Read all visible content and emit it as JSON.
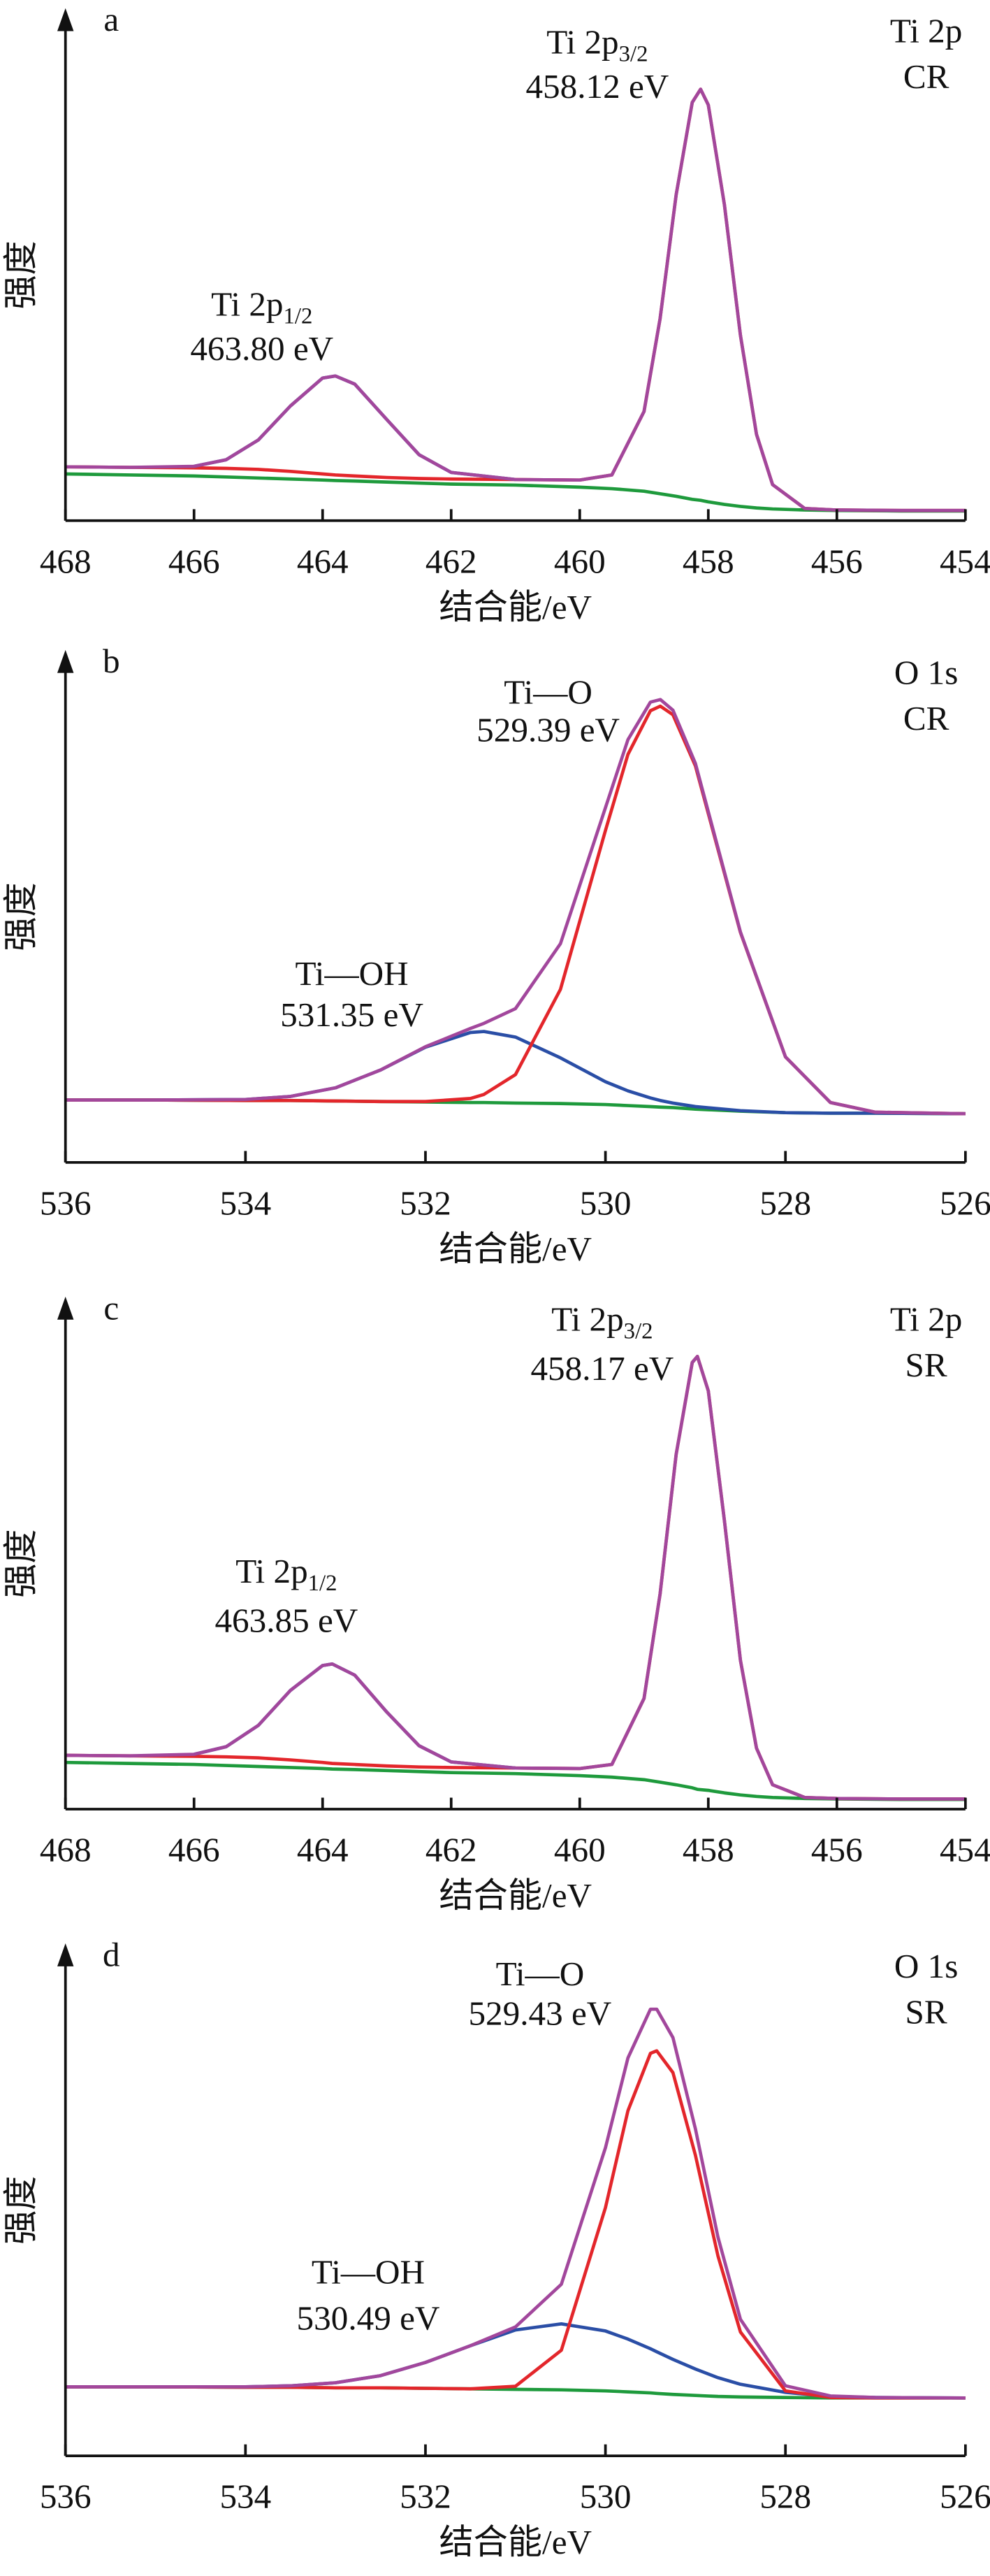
{
  "chart_data": [
    {
      "type": "line",
      "panel_label": "a",
      "corner_label": [
        "Ti 2p",
        "CR"
      ],
      "xlabel": "结合能/eV",
      "ylabel": "强度",
      "xlim": [
        468,
        454
      ],
      "xticks": [
        468,
        466,
        464,
        462,
        460,
        458,
        456,
        454
      ],
      "ylim": [
        0,
        100
      ],
      "annotations": [
        {
          "text": "Ti 2p",
          "subscript": "3/2",
          "energy": "458.12 eV"
        },
        {
          "text": "Ti 2p",
          "subscript": "1/2",
          "energy": "463.80 eV"
        }
      ],
      "x": [
        468,
        467,
        466,
        465.5,
        465,
        464.5,
        464,
        463.8,
        463.5,
        463,
        462.5,
        462,
        461,
        460,
        459.5,
        459,
        458.75,
        458.5,
        458.25,
        458.12,
        458,
        457.75,
        457.5,
        457.25,
        457,
        456.5,
        456,
        455,
        454
      ],
      "series": [
        {
          "color": "#1e9a3c",
          "values": [
            9.2,
            9.0,
            8.8,
            8.6,
            8.4,
            8.2,
            8.0,
            7.9,
            7.8,
            7.6,
            7.4,
            7.2,
            7.0,
            6.6,
            6.3,
            5.8,
            5.3,
            4.8,
            4.2,
            4.0,
            3.7,
            3.2,
            2.8,
            2.5,
            2.3,
            2.1,
            2.0,
            1.9,
            1.9
          ]
        },
        {
          "color": "#e3262b",
          "values": [
            10.6,
            10.5,
            10.4,
            10.3,
            10.1,
            9.7,
            9.2,
            9.0,
            8.8,
            8.5,
            8.3,
            8.2,
            8.1,
            8.0,
            9.0,
            21.5,
            39.8,
            64.2,
            82.4,
            85.0,
            81.9,
            62.3,
            36.5,
            17.0,
            7.1,
            2.4,
            2.1,
            2.0,
            2.0
          ]
        },
        {
          "color": "#2a4ea6",
          "values": [
            null,
            null,
            10.7,
            12.0,
            15.9,
            22.6,
            28.1,
            28.5,
            26.9,
            19.9,
            13.0,
            9.5,
            8.1,
            null,
            null,
            null,
            null,
            null,
            null,
            null,
            null,
            null,
            null,
            null,
            null,
            null,
            null,
            null,
            null
          ]
        },
        {
          "color": "#a2479c",
          "values": [
            10.6,
            10.5,
            10.7,
            12.0,
            15.9,
            22.6,
            28.1,
            28.5,
            26.9,
            19.9,
            13.0,
            9.5,
            8.1,
            8.0,
            9.0,
            21.5,
            39.8,
            64.2,
            82.4,
            85.0,
            81.9,
            62.3,
            36.5,
            17.0,
            7.1,
            2.4,
            2.1,
            2.0,
            2.0
          ]
        }
      ]
    },
    {
      "type": "line",
      "panel_label": "b",
      "corner_label": [
        "O 1s",
        "CR"
      ],
      "xlabel": "结合能/eV",
      "ylabel": "强度",
      "xlim": [
        536,
        526
      ],
      "xticks": [
        536,
        534,
        532,
        530,
        528,
        526
      ],
      "ylim": [
        0,
        100
      ],
      "annotations": [
        {
          "text": "Ti—O",
          "energy": "529.39 eV"
        },
        {
          "text": "Ti—OH",
          "energy": "531.35 eV"
        }
      ],
      "x": [
        536,
        535,
        534,
        533.5,
        533,
        532.5,
        532,
        531.5,
        531.35,
        531,
        530.5,
        530,
        529.75,
        529.5,
        529.39,
        529.25,
        529,
        528.5,
        528,
        527.5,
        527,
        526
      ],
      "series": [
        {
          "color": "#1e9a3c",
          "values": [
            12.3,
            12.3,
            12.2,
            12.2,
            12.1,
            12.0,
            11.9,
            11.8,
            11.8,
            11.7,
            11.6,
            11.4,
            11.2,
            11.0,
            10.9,
            10.8,
            10.5,
            10.1,
            9.8,
            9.7,
            9.7,
            9.6
          ]
        },
        {
          "color": "#2a4ea6",
          "values": [
            12.3,
            12.3,
            12.4,
            13.0,
            14.7,
            18.2,
            22.7,
            25.6,
            25.8,
            24.7,
            20.6,
            15.9,
            14.1,
            12.7,
            12.2,
            11.7,
            11.0,
            10.2,
            9.8,
            9.7,
            9.7,
            9.6
          ]
        },
        {
          "color": "#e3262b",
          "values": [
            12.3,
            12.3,
            12.2,
            12.2,
            12.1,
            12.0,
            12.0,
            12.6,
            13.4,
            17.3,
            34.1,
            65.4,
            80.4,
            89.0,
            89.9,
            88.2,
            78.1,
            45.3,
            20.8,
            11.8,
            9.9,
            9.6
          ]
        },
        {
          "color": "#a2479c",
          "values": [
            12.3,
            12.3,
            12.4,
            13.0,
            14.7,
            18.2,
            22.8,
            26.4,
            27.4,
            30.3,
            43.1,
            69.9,
            83.3,
            90.7,
            91.2,
            89.1,
            78.6,
            45.4,
            20.8,
            11.8,
            9.9,
            9.6
          ]
        }
      ]
    },
    {
      "type": "line",
      "panel_label": "c",
      "corner_label": [
        "Ti 2p",
        "SR"
      ],
      "xlabel": "结合能/eV",
      "ylabel": "强度",
      "xlim": [
        468,
        454
      ],
      "xticks": [
        468,
        466,
        464,
        462,
        460,
        458,
        456,
        454
      ],
      "ylim": [
        0,
        100
      ],
      "annotations": [
        {
          "text": "Ti 2p",
          "subscript": "3/2",
          "energy": "458.17 eV"
        },
        {
          "text": "Ti 2p",
          "subscript": "1/2",
          "energy": "463.85 eV"
        }
      ],
      "x": [
        468,
        467,
        466,
        465.5,
        465,
        464.5,
        464,
        463.85,
        463.5,
        463,
        462.5,
        462,
        461,
        460,
        459.5,
        459,
        458.75,
        458.5,
        458.25,
        458.17,
        458,
        457.75,
        457.5,
        457.25,
        457,
        456.5,
        456,
        455,
        454
      ],
      "series": [
        {
          "color": "#1e9a3c",
          "values": [
            9.2,
            9.0,
            8.8,
            8.6,
            8.4,
            8.2,
            8.0,
            7.9,
            7.8,
            7.6,
            7.4,
            7.2,
            7.0,
            6.6,
            6.3,
            5.8,
            5.3,
            4.8,
            4.2,
            3.9,
            3.7,
            3.2,
            2.8,
            2.5,
            2.3,
            2.1,
            2.0,
            1.9,
            1.9
          ]
        },
        {
          "color": "#e3262b",
          "values": [
            10.6,
            10.5,
            10.4,
            10.3,
            10.1,
            9.7,
            9.2,
            9.0,
            8.8,
            8.5,
            8.3,
            8.2,
            8.1,
            8.0,
            8.8,
            21.8,
            42.4,
            69.9,
            88.0,
            89.2,
            82.4,
            56.9,
            29.3,
            12.0,
            4.8,
            2.3,
            2.1,
            2.0,
            2.0
          ]
        },
        {
          "color": "#2a4ea6",
          "values": [
            null,
            null,
            10.8,
            12.3,
            16.5,
            23.4,
            28.3,
            28.6,
            26.4,
            19.1,
            12.5,
            9.3,
            8.1,
            null,
            null,
            null,
            null,
            null,
            null,
            null,
            null,
            null,
            null,
            null,
            null,
            null,
            null,
            null,
            null
          ]
        },
        {
          "color": "#a2479c",
          "values": [
            10.6,
            10.5,
            10.8,
            12.3,
            16.5,
            23.4,
            28.3,
            28.6,
            26.4,
            19.1,
            12.5,
            9.3,
            8.1,
            8.0,
            8.8,
            21.8,
            42.4,
            69.9,
            88.0,
            89.2,
            82.4,
            56.9,
            29.3,
            12.0,
            4.8,
            2.3,
            2.1,
            2.0,
            2.0
          ]
        }
      ]
    },
    {
      "type": "line",
      "panel_label": "d",
      "corner_label": [
        "O 1s",
        "SR"
      ],
      "xlabel": "结合能/eV",
      "ylabel": "强度",
      "xlim": [
        536,
        526
      ],
      "xticks": [
        536,
        534,
        532,
        530,
        528,
        526
      ],
      "ylim": [
        0,
        100
      ],
      "annotations": [
        {
          "text": "Ti—O",
          "energy": "529.43 eV"
        },
        {
          "text": "Ti—OH",
          "energy": "530.49 eV"
        }
      ],
      "x": [
        536,
        535,
        534,
        533.5,
        533,
        532.5,
        532,
        531.5,
        531,
        530.49,
        530,
        529.75,
        529.5,
        529.43,
        529.25,
        529,
        528.75,
        528.5,
        528,
        527.5,
        527,
        526
      ],
      "series": [
        {
          "color": "#1e9a3c",
          "values": [
            13.6,
            13.6,
            13.5,
            13.5,
            13.4,
            13.4,
            13.3,
            13.2,
            13.1,
            13.0,
            12.8,
            12.6,
            12.4,
            12.3,
            12.1,
            11.9,
            11.7,
            11.6,
            11.5,
            11.4,
            11.4,
            11.4
          ]
        },
        {
          "color": "#2a4ea6",
          "values": [
            13.6,
            13.6,
            13.6,
            13.8,
            14.4,
            15.8,
            18.4,
            21.7,
            24.8,
            26.0,
            24.6,
            23.0,
            21.1,
            20.5,
            19.0,
            17.1,
            15.4,
            14.1,
            12.5,
            11.7,
            11.5,
            11.4
          ]
        },
        {
          "color": "#e3262b",
          "values": [
            13.6,
            13.6,
            13.5,
            13.5,
            13.4,
            13.4,
            13.3,
            13.2,
            13.7,
            20.8,
            48.9,
            68.0,
            79.3,
            79.8,
            75.5,
            59.2,
            39.4,
            24.4,
            12.8,
            11.5,
            11.4,
            11.4
          ]
        },
        {
          "color": "#a2479c",
          "values": [
            13.6,
            13.6,
            13.6,
            13.8,
            14.4,
            15.8,
            18.4,
            21.7,
            25.4,
            33.8,
            60.7,
            78.4,
            88.0,
            88.0,
            82.4,
            64.4,
            43.1,
            26.9,
            13.8,
            11.8,
            11.5,
            11.4
          ]
        }
      ]
    }
  ]
}
